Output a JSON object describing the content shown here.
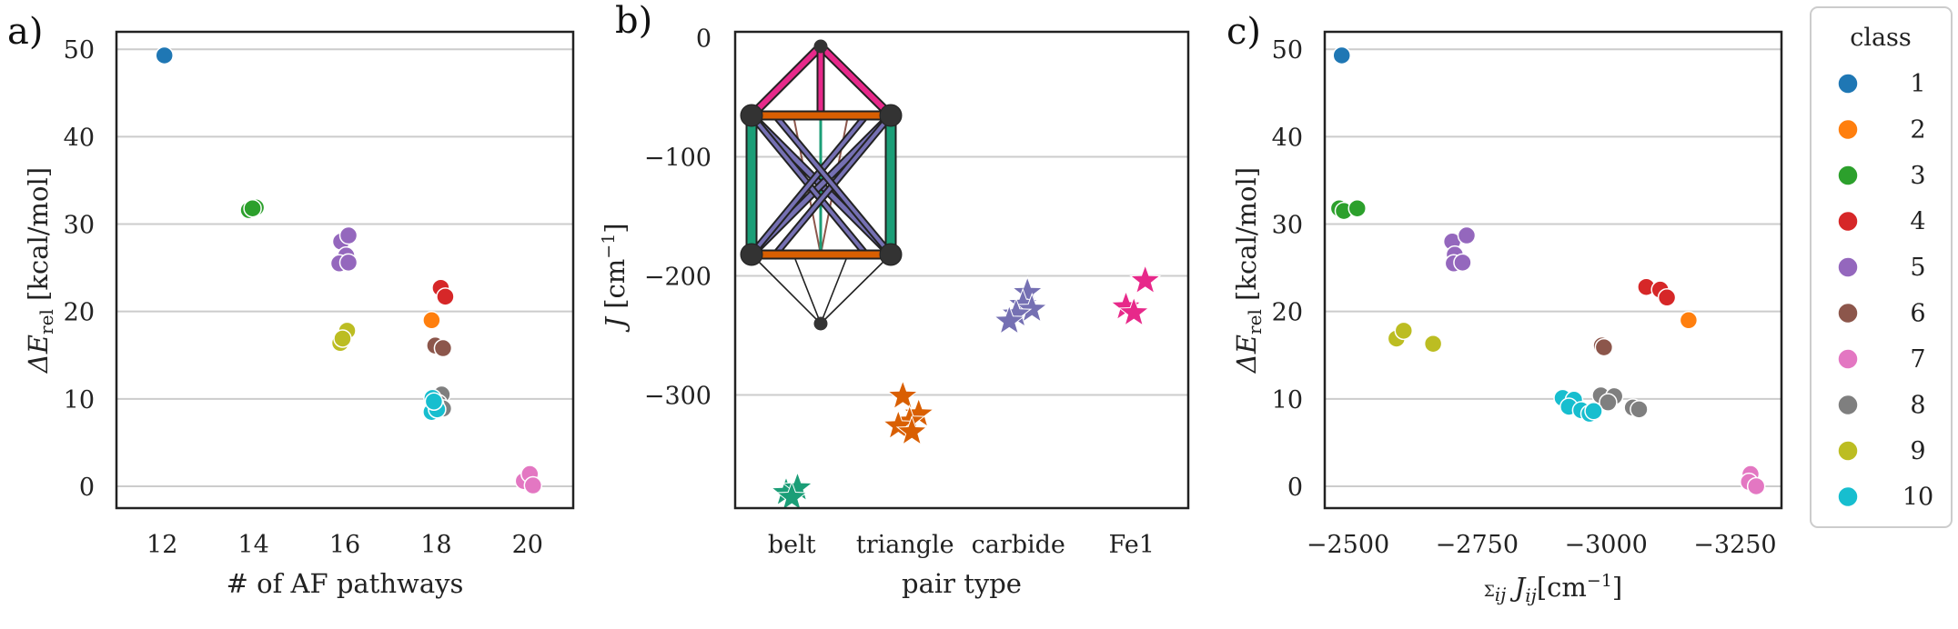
{
  "panel_labels": [
    "a)",
    "b)",
    "c)"
  ],
  "colors": {
    "1": "#1f77b4",
    "2": "#ff7f0e",
    "3": "#2ca02c",
    "4": "#d62728",
    "5": "#9467bd",
    "6": "#8c564b",
    "7": "#e377c2",
    "8": "#7f7f7f",
    "9": "#bcbd22",
    "10": "#17becf",
    "belt": "#1b9e77",
    "triangle": "#d95f02",
    "carbide": "#7570b3",
    "Fe1": "#e7298a"
  },
  "legend": {
    "title": "class",
    "entries": [
      {
        "label": "1",
        "color": "#1f77b4"
      },
      {
        "label": "2",
        "color": "#ff7f0e"
      },
      {
        "label": "3",
        "color": "#2ca02c"
      },
      {
        "label": "4",
        "color": "#d62728"
      },
      {
        "label": "5",
        "color": "#9467bd"
      },
      {
        "label": "6",
        "color": "#8c564b"
      },
      {
        "label": "7",
        "color": "#e377c2"
      },
      {
        "label": "8",
        "color": "#7f7f7f"
      },
      {
        "label": "9",
        "color": "#bcbd22"
      },
      {
        "label": "10",
        "color": "#17becf"
      }
    ]
  },
  "chart_data": [
    {
      "id": "a",
      "type": "scatter",
      "xlabel": "# of AF pathways",
      "ylabel_main": "ΔE",
      "ylabel_sub": "rel",
      "ylabel_rest": " [kcal/mol]",
      "xlim": [
        11,
        21
      ],
      "ylim": [
        -2.5,
        52
      ],
      "xticks": [
        12,
        14,
        16,
        18,
        20
      ],
      "yticks": [
        0,
        10,
        20,
        30,
        40,
        50
      ],
      "grid": "horizontal",
      "points": [
        {
          "x": 12.05,
          "y": 49.3,
          "c": "1"
        },
        {
          "x": 17.9,
          "y": 19.0,
          "c": "2"
        },
        {
          "x": 13.9,
          "y": 31.6,
          "c": "3"
        },
        {
          "x": 14.05,
          "y": 31.9,
          "c": "3"
        },
        {
          "x": 13.98,
          "y": 31.8,
          "c": "3"
        },
        {
          "x": 18.1,
          "y": 22.7,
          "c": "4"
        },
        {
          "x": 18.2,
          "y": 21.7,
          "c": "4"
        },
        {
          "x": 15.92,
          "y": 28.0,
          "c": "5"
        },
        {
          "x": 16.08,
          "y": 28.7,
          "c": "5"
        },
        {
          "x": 16.03,
          "y": 26.4,
          "c": "5"
        },
        {
          "x": 15.88,
          "y": 25.5,
          "c": "5"
        },
        {
          "x": 16.08,
          "y": 25.6,
          "c": "5"
        },
        {
          "x": 17.98,
          "y": 16.1,
          "c": "6"
        },
        {
          "x": 18.15,
          "y": 15.8,
          "c": "6"
        },
        {
          "x": 19.92,
          "y": 0.6,
          "c": "7"
        },
        {
          "x": 20.05,
          "y": 1.4,
          "c": "7"
        },
        {
          "x": 20.12,
          "y": 0.1,
          "c": "7"
        },
        {
          "x": 18.12,
          "y": 10.5,
          "c": "8"
        },
        {
          "x": 18.05,
          "y": 9.5,
          "c": "8"
        },
        {
          "x": 18.15,
          "y": 8.9,
          "c": "8"
        },
        {
          "x": 15.9,
          "y": 16.4,
          "c": "9"
        },
        {
          "x": 16.05,
          "y": 17.8,
          "c": "9"
        },
        {
          "x": 15.95,
          "y": 16.9,
          "c": "9"
        },
        {
          "x": 17.92,
          "y": 10.1,
          "c": "10"
        },
        {
          "x": 17.98,
          "y": 9.3,
          "c": "10"
        },
        {
          "x": 17.9,
          "y": 8.5,
          "c": "10"
        },
        {
          "x": 18.02,
          "y": 8.8,
          "c": "10"
        },
        {
          "x": 17.95,
          "y": 9.7,
          "c": "10"
        }
      ]
    },
    {
      "id": "b",
      "type": "scatter",
      "xlabel": "pair type",
      "ylabel_main": "J",
      "ylabel_rest": " [cm",
      "ylabel_sup": "−1",
      "ylabel_end": "]",
      "categories": [
        "belt",
        "triangle",
        "carbide",
        "Fe1"
      ],
      "ylim": [
        -395,
        5
      ],
      "yticks": [
        0,
        -100,
        -200,
        -300
      ],
      "ytick_labels": [
        "0",
        "−100",
        "−200",
        "−300"
      ],
      "grid": "horizontal",
      "points": [
        {
          "cat": 0,
          "dx": -0.05,
          "y": -382
        },
        {
          "cat": 0,
          "dx": 0.05,
          "y": -378
        },
        {
          "cat": 0,
          "dx": 0.0,
          "y": -386
        },
        {
          "cat": 1,
          "dx": -0.02,
          "y": -301
        },
        {
          "cat": 1,
          "dx": 0.12,
          "y": -316
        },
        {
          "cat": 1,
          "dx": 0.04,
          "y": -322
        },
        {
          "cat": 1,
          "dx": -0.06,
          "y": -326
        },
        {
          "cat": 1,
          "dx": 0.06,
          "y": -331
        },
        {
          "cat": 2,
          "dx": 0.08,
          "y": -214
        },
        {
          "cat": 2,
          "dx": 0.04,
          "y": -224
        },
        {
          "cat": 2,
          "dx": 0.12,
          "y": -228
        },
        {
          "cat": 2,
          "dx": -0.02,
          "y": -232
        },
        {
          "cat": 2,
          "dx": -0.08,
          "y": -238
        },
        {
          "cat": 3,
          "dx": 0.12,
          "y": -204
        },
        {
          "cat": 3,
          "dx": -0.05,
          "y": -226
        },
        {
          "cat": 3,
          "dx": 0.02,
          "y": -231
        }
      ]
    },
    {
      "id": "c",
      "type": "scatter",
      "xlabel_main": "J",
      "xlabel_sigma": "Σ",
      "xlabel_sub": "ij",
      "xlabel_rest": "[cm",
      "xlabel_sup": "−1",
      "xlabel_end": "]",
      "ylabel_main": "ΔE",
      "ylabel_sub": "rel",
      "ylabel_rest": " [kcal/mol]",
      "xlim": [
        -2455,
        -3340
      ],
      "ylim": [
        -2.5,
        52
      ],
      "xticks": [
        -2500,
        -2750,
        -3000,
        -3250
      ],
      "xtick_labels": [
        "−2500",
        "−2750",
        "−3000",
        "−3250"
      ],
      "yticks": [
        0,
        10,
        20,
        30,
        40,
        50
      ],
      "grid": "horizontal",
      "points": [
        {
          "x": -2488,
          "y": 49.3,
          "c": "1"
        },
        {
          "x": -3160,
          "y": 19.0,
          "c": "2"
        },
        {
          "x": -2483,
          "y": 31.8,
          "c": "3"
        },
        {
          "x": -2492,
          "y": 31.5,
          "c": "3"
        },
        {
          "x": -2518,
          "y": 31.8,
          "c": "3"
        },
        {
          "x": -3078,
          "y": 22.8,
          "c": "4"
        },
        {
          "x": -3105,
          "y": 22.5,
          "c": "4"
        },
        {
          "x": -3118,
          "y": 21.6,
          "c": "4"
        },
        {
          "x": -2702,
          "y": 28.0,
          "c": "5"
        },
        {
          "x": -2730,
          "y": 28.7,
          "c": "5"
        },
        {
          "x": -2707,
          "y": 26.5,
          "c": "5"
        },
        {
          "x": -2705,
          "y": 25.5,
          "c": "5"
        },
        {
          "x": -2722,
          "y": 25.6,
          "c": "5"
        },
        {
          "x": -2992,
          "y": 16.1,
          "c": "6"
        },
        {
          "x": -2996,
          "y": 15.9,
          "c": "6"
        },
        {
          "x": -3280,
          "y": 1.4,
          "c": "7"
        },
        {
          "x": -3277,
          "y": 0.5,
          "c": "7"
        },
        {
          "x": -3291,
          "y": 0.0,
          "c": "7"
        },
        {
          "x": -2990,
          "y": 10.4,
          "c": "8"
        },
        {
          "x": -3016,
          "y": 10.3,
          "c": "8"
        },
        {
          "x": -3004,
          "y": 9.6,
          "c": "8"
        },
        {
          "x": -3052,
          "y": 9.0,
          "c": "8"
        },
        {
          "x": -3064,
          "y": 8.8,
          "c": "8"
        },
        {
          "x": -2594,
          "y": 16.9,
          "c": "9"
        },
        {
          "x": -2608,
          "y": 17.8,
          "c": "9"
        },
        {
          "x": -2665,
          "y": 16.3,
          "c": "9"
        },
        {
          "x": -2916,
          "y": 10.1,
          "c": "10"
        },
        {
          "x": -2938,
          "y": 9.9,
          "c": "10"
        },
        {
          "x": -2928,
          "y": 9.1,
          "c": "10"
        },
        {
          "x": -2952,
          "y": 8.7,
          "c": "10"
        },
        {
          "x": -2968,
          "y": 8.3,
          "c": "10"
        },
        {
          "x": -2976,
          "y": 8.6,
          "c": "10"
        }
      ]
    }
  ]
}
